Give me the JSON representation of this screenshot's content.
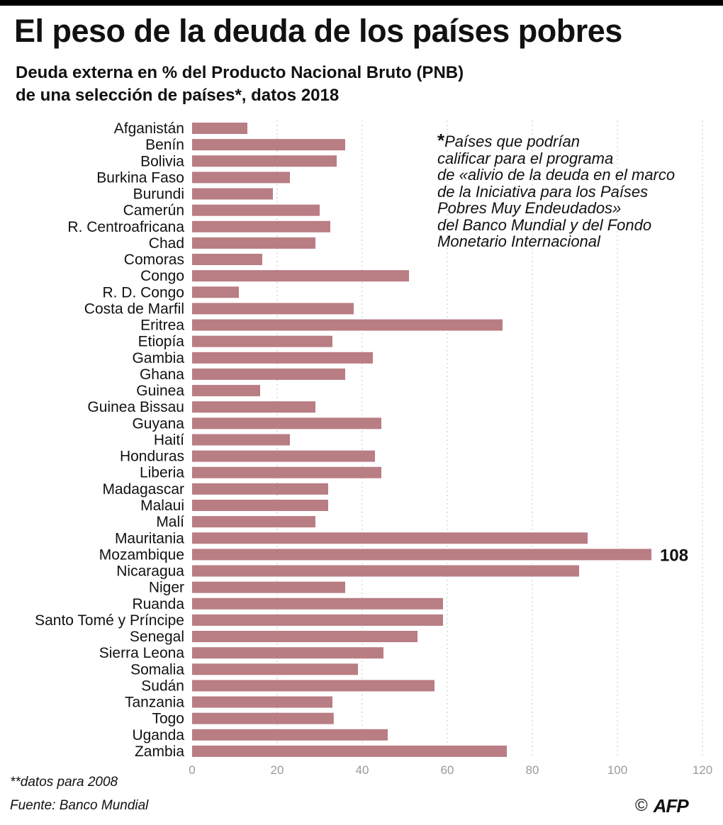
{
  "title": "El peso de la deuda de los países pobres",
  "subtitle_line1": "Deuda externa en % del Producto Nacional Bruto (PNB)",
  "subtitle_line2": "de una selección de países*, datos 2018",
  "note_star": "*",
  "note_text": "Países que podrían\ncalificar para el programa\nde «alivio de la deuda en el marco\nde la Iniciativa para los Países\nPobres Muy Endeudados»\ndel Banco Mundial y del Fondo\nMonetario Internacional",
  "footnote": "**datos para 2008",
  "source": "Fuente: Banco Mundial",
  "credit_symbol": "©",
  "credit_agency": "AFP",
  "colors": {
    "bar": "#b97d84",
    "grid": "#cfcfcf",
    "axis_text": "#9a9a9a",
    "text": "#111111"
  },
  "chart_data": {
    "type": "bar",
    "orientation": "horizontal",
    "xlim": [
      0,
      120
    ],
    "xticks": [
      0,
      20,
      40,
      60,
      80,
      100,
      120
    ],
    "grid": true,
    "categories": [
      "Afganistán",
      "Benín",
      "Bolivia",
      "Burkina Faso",
      "Burundi",
      "Camerún",
      "R. Centroafricana",
      "Chad",
      "Comoras",
      "Congo",
      "R. D. Congo",
      "Costa de Marfil",
      "Eritrea",
      "Etiopía",
      "Gambia",
      "Ghana",
      "Guinea",
      "Guinea Bissau",
      "Guyana",
      "Haití",
      "Honduras",
      "Liberia",
      "Madagascar",
      "Malaui",
      "Malí",
      "Mauritania",
      "Mozambique",
      "Nicaragua",
      "Niger",
      "Ruanda",
      "Santo Tomé y Príncipe",
      "Senegal",
      "Sierra Leona",
      "Somalia",
      "Sudán",
      "Tanzania",
      "Togo",
      "Uganda",
      "Zambia"
    ],
    "values": [
      13,
      36,
      34,
      23,
      19,
      30,
      32.5,
      29,
      16.5,
      51,
      11,
      38,
      73,
      33,
      42.5,
      36,
      16,
      29,
      44.5,
      23,
      43,
      44.5,
      32,
      32,
      29,
      93,
      108,
      91,
      36,
      59,
      59,
      53,
      45,
      39,
      57,
      33,
      33.3,
      46,
      74
    ],
    "annotations": [
      {
        "category": "Mozambique",
        "text": "108"
      }
    ]
  }
}
